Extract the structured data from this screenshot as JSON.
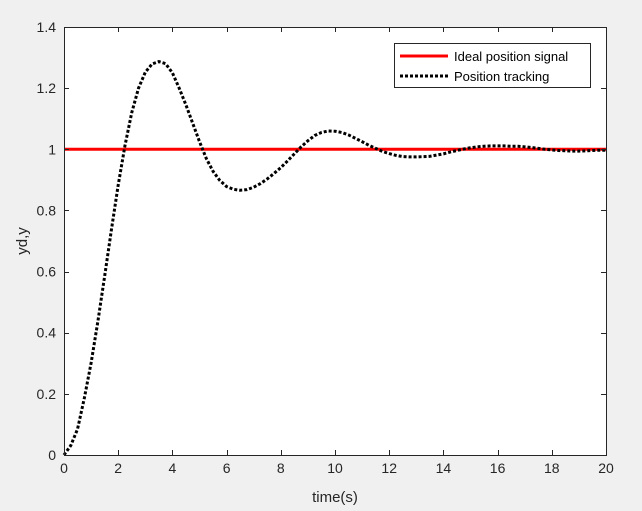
{
  "chart_data": {
    "type": "line",
    "title": "",
    "xlabel": "time(s)",
    "ylabel": "yd,y",
    "xlim": [
      0,
      20
    ],
    "ylim": [
      0,
      1.4
    ],
    "xticks": [
      0,
      2,
      4,
      6,
      8,
      10,
      12,
      14,
      16,
      18,
      20
    ],
    "yticks": [
      0,
      0.2,
      0.4,
      0.6,
      0.8,
      1,
      1.2,
      1.4
    ],
    "xtick_labels": [
      "0",
      "2",
      "4",
      "6",
      "8",
      "10",
      "12",
      "14",
      "16",
      "18",
      "20"
    ],
    "ytick_labels": [
      "0",
      "0.2",
      "0.4",
      "0.6",
      "0.8",
      "1",
      "1.2",
      "1.4"
    ],
    "grid": false,
    "legend_position": "top-right",
    "series": [
      {
        "name": "Ideal position signal",
        "color": "#ff0000",
        "style": "solid",
        "x": [
          0,
          20
        ],
        "y": [
          1,
          1
        ]
      },
      {
        "name": "Position tracking",
        "color": "#000000",
        "style": "dotted",
        "x": [
          0,
          0.25,
          0.5,
          0.75,
          1.0,
          1.25,
          1.5,
          1.75,
          2.0,
          2.25,
          2.5,
          2.75,
          3.0,
          3.25,
          3.5,
          3.75,
          4.0,
          4.25,
          4.5,
          4.75,
          5.0,
          5.25,
          5.5,
          5.75,
          6.0,
          6.25,
          6.5,
          6.75,
          7.0,
          7.25,
          7.5,
          7.75,
          8.0,
          8.25,
          8.5,
          8.75,
          9.0,
          9.25,
          9.5,
          9.75,
          10.0,
          10.25,
          10.5,
          10.75,
          11.0,
          11.25,
          11.5,
          11.75,
          12.0,
          12.25,
          12.5,
          12.75,
          13.0,
          13.25,
          13.5,
          13.75,
          14.0,
          14.25,
          14.5,
          14.75,
          15.0,
          15.25,
          15.5,
          15.75,
          16.0,
          16.25,
          16.5,
          16.75,
          17.0,
          17.25,
          17.5,
          17.75,
          18.0,
          18.25,
          18.5,
          18.75,
          19.0,
          19.25,
          19.5,
          19.75,
          20.0
        ],
        "y": [
          0.0,
          0.031,
          0.085,
          0.186,
          0.301,
          0.437,
          0.585,
          0.737,
          0.883,
          1.012,
          1.12,
          1.2,
          1.252,
          1.279,
          1.287,
          1.28,
          1.25,
          1.2,
          1.145,
          1.085,
          1.025,
          0.97,
          0.928,
          0.898,
          0.878,
          0.869,
          0.866,
          0.868,
          0.876,
          0.888,
          0.903,
          0.921,
          0.94,
          0.962,
          0.985,
          1.008,
          1.028,
          1.045,
          1.055,
          1.06,
          1.059,
          1.055,
          1.047,
          1.036,
          1.025,
          1.013,
          1.003,
          0.993,
          0.986,
          0.98,
          0.976,
          0.975,
          0.975,
          0.976,
          0.977,
          0.981,
          0.985,
          0.991,
          0.996,
          1.001,
          1.005,
          1.008,
          1.01,
          1.011,
          1.011,
          1.011,
          1.01,
          1.01,
          1.008,
          1.006,
          1.003,
          1.0,
          0.998,
          0.996,
          0.995,
          0.994,
          0.994,
          0.995,
          0.996,
          0.997,
          0.997
        ]
      }
    ]
  }
}
